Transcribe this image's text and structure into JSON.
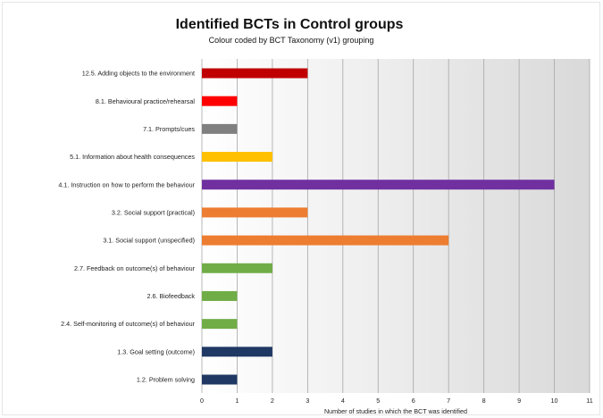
{
  "chart_data": {
    "type": "bar",
    "orientation": "horizontal",
    "title": "Identified BCTs in Control groups",
    "subtitle": "Colour coded by BCT Taxonomy (v1) grouping",
    "xlabel": "Number of studies in which the BCT was identified",
    "ylabel": "",
    "xlim": [
      0,
      11
    ],
    "xticks": [
      "0",
      "1",
      "2",
      "3",
      "4",
      "5",
      "6",
      "7",
      "8",
      "9",
      "10",
      "11"
    ],
    "grid": true,
    "legend": "none",
    "categories": [
      "12.5. Adding objects to the environment",
      "8.1. Behavioural practice/rehearsal",
      "7.1. Prompts/cues",
      "5.1. Information about health consequences",
      "4.1. Instruction on how to perform the behaviour",
      "3.2. Social support (practical)",
      "3.1. Social support (unspecified)",
      "2.7. Feedback on outcome(s) of behaviour",
      "2.6. Biofeedback",
      "2.4. Self-monitoring of outcome(s) of behaviour",
      "1.3.  Goal setting (outcome)",
      "1.2.  Problem solving"
    ],
    "values": [
      3,
      1,
      1,
      2,
      10,
      3,
      7,
      2,
      1,
      1,
      2,
      1
    ],
    "colors": [
      "#c00000",
      "#ff0000",
      "#808080",
      "#ffc000",
      "#7030a0",
      "#ed7d31",
      "#ed7d31",
      "#70ad47",
      "#70ad47",
      "#70ad47",
      "#1f3864",
      "#1f3864"
    ]
  }
}
